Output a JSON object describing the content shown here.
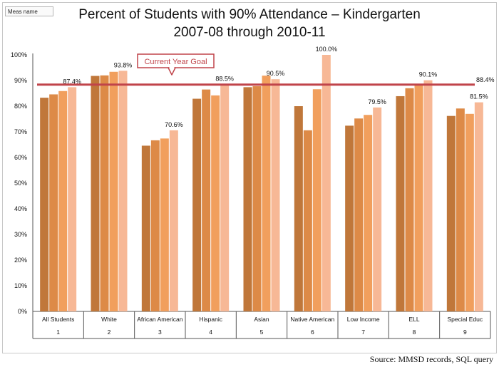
{
  "header": {
    "measure_label": "Meas name",
    "title_line1": "Percent of Students with 90% Attendance – Kindergarten",
    "title_line2": "2007-08 through 2010-11"
  },
  "footer": {
    "source": "Source:  MMSD records, SQL query"
  },
  "colors": {
    "y1": "#c0773a",
    "y2": "#dd8a47",
    "y3": "#f19f5d",
    "y4": "#f7b896",
    "goal": "#c0444a"
  },
  "chart_data": {
    "type": "bar",
    "categories": [
      "All Students",
      "White",
      "African American",
      "Hispanic",
      "Asian",
      "Native American",
      "Low Income",
      "ELL",
      "Special Educ"
    ],
    "category_numbers": [
      "1",
      "2",
      "3",
      "4",
      "5",
      "6",
      "7",
      "8",
      "9"
    ],
    "series": [
      {
        "values": [
          83.3,
          91.8,
          64.6,
          82.9,
          87.4,
          80.0,
          72.4,
          83.9,
          76.2
        ]
      },
      {
        "values": [
          84.6,
          92.0,
          66.7,
          86.5,
          87.8,
          70.6,
          75.2,
          87.0,
          79.1
        ]
      },
      {
        "values": [
          85.9,
          93.4,
          67.4,
          84.2,
          91.9,
          86.6,
          76.6,
          88.3,
          77.0
        ]
      },
      {
        "values": [
          87.4,
          93.8,
          70.6,
          88.5,
          90.5,
          100.0,
          79.5,
          90.1,
          81.5
        ]
      }
    ],
    "data_labels": [
      "87.4%",
      "93.8%",
      "70.6%",
      "88.5%",
      "90.5%",
      "100.0%",
      "79.5%",
      "90.1%",
      "81.5%"
    ],
    "ylim": [
      0,
      100
    ],
    "yticks": [
      "0%",
      "10%",
      "20%",
      "30%",
      "40%",
      "50%",
      "60%",
      "70%",
      "80%",
      "90%",
      "100%"
    ],
    "reference_line": {
      "value": 88.4,
      "label": "88.4%"
    },
    "annotation": "Current Year Goal",
    "grid": false
  }
}
